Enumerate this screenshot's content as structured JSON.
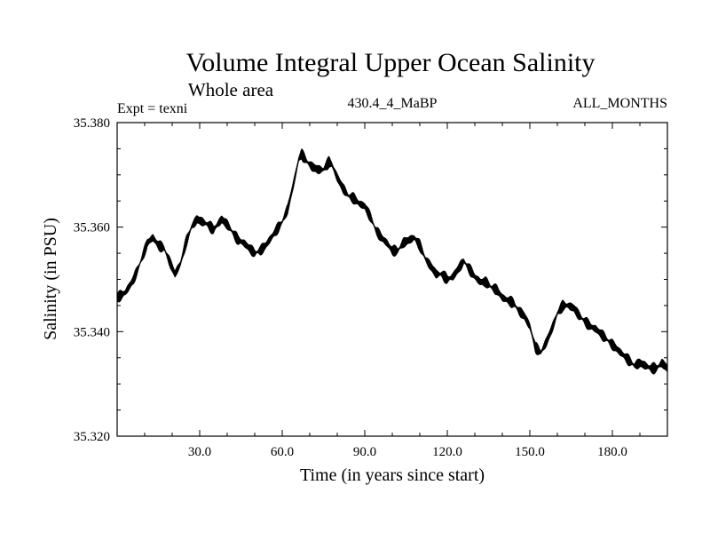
{
  "chart_data": {
    "type": "line",
    "title": "Volume Integral Upper Ocean Salinity",
    "subtitle": "Whole area",
    "annotations": {
      "left": "Expt = texni",
      "center": "430.4_4_MaBP",
      "right": "ALL_MONTHS"
    },
    "xlabel": "Time (in years since start)",
    "ylabel": "Salinity (in PSU)",
    "xlim": [
      0,
      200
    ],
    "ylim": [
      35.32,
      35.38
    ],
    "x_ticks": [
      30,
      60,
      90,
      120,
      150,
      180
    ],
    "x_tick_labels": [
      "30.0",
      "60.0",
      "90.0",
      "120.0",
      "150.0",
      "180.0"
    ],
    "y_ticks": [
      35.32,
      35.34,
      35.36,
      35.38
    ],
    "y_tick_labels": [
      "35.320",
      "35.340",
      "35.360",
      "35.380"
    ],
    "grid": false,
    "line_color": "#000000",
    "series": [
      {
        "name": "salinity",
        "x": [
          0,
          3,
          6,
          9,
          11,
          13,
          15,
          17,
          19,
          21,
          23,
          25,
          27,
          29,
          31,
          33,
          35,
          38,
          40,
          42,
          44,
          46,
          48,
          50,
          52,
          54,
          56,
          58,
          60,
          62,
          64,
          66,
          67,
          69,
          71,
          73,
          75,
          77,
          78,
          80,
          82,
          84,
          86,
          88,
          90,
          92,
          94,
          96,
          98,
          100,
          102,
          104,
          106,
          108,
          110,
          112,
          114,
          116,
          118,
          120,
          122,
          124,
          126,
          128,
          130,
          132,
          134,
          136,
          138,
          140,
          142,
          144,
          146,
          148,
          150,
          152,
          154,
          156,
          158,
          160,
          162,
          164,
          166,
          168,
          170,
          172,
          174,
          176,
          178,
          180,
          182,
          184,
          186,
          188,
          190,
          192,
          194,
          196,
          198,
          200
        ],
        "values": [
          35.3465,
          35.3475,
          35.35,
          35.354,
          35.357,
          35.358,
          35.3565,
          35.356,
          35.3535,
          35.351,
          35.353,
          35.357,
          35.36,
          35.3615,
          35.361,
          35.3605,
          35.3595,
          35.3615,
          35.3605,
          35.359,
          35.3575,
          35.357,
          35.356,
          35.355,
          35.3555,
          35.3565,
          35.358,
          35.3595,
          35.361,
          35.3635,
          35.368,
          35.373,
          35.374,
          35.3725,
          35.3715,
          35.371,
          35.371,
          35.3725,
          35.372,
          35.3695,
          35.3675,
          35.366,
          35.3655,
          35.3645,
          35.364,
          35.362,
          35.3595,
          35.358,
          35.357,
          35.3555,
          35.3555,
          35.357,
          35.3575,
          35.358,
          35.3565,
          35.354,
          35.3525,
          35.351,
          35.351,
          35.35,
          35.3505,
          35.352,
          35.3535,
          35.352,
          35.3505,
          35.3495,
          35.3495,
          35.3485,
          35.348,
          35.3465,
          35.346,
          35.3455,
          35.344,
          35.343,
          35.341,
          35.337,
          35.336,
          35.338,
          35.3405,
          35.3435,
          35.345,
          35.345,
          35.3445,
          35.343,
          35.342,
          35.341,
          35.3405,
          35.3395,
          35.3385,
          35.3375,
          35.3365,
          35.3355,
          35.3345,
          35.3335,
          35.334,
          35.3335,
          35.333,
          35.333,
          35.334,
          35.333
        ]
      }
    ]
  }
}
